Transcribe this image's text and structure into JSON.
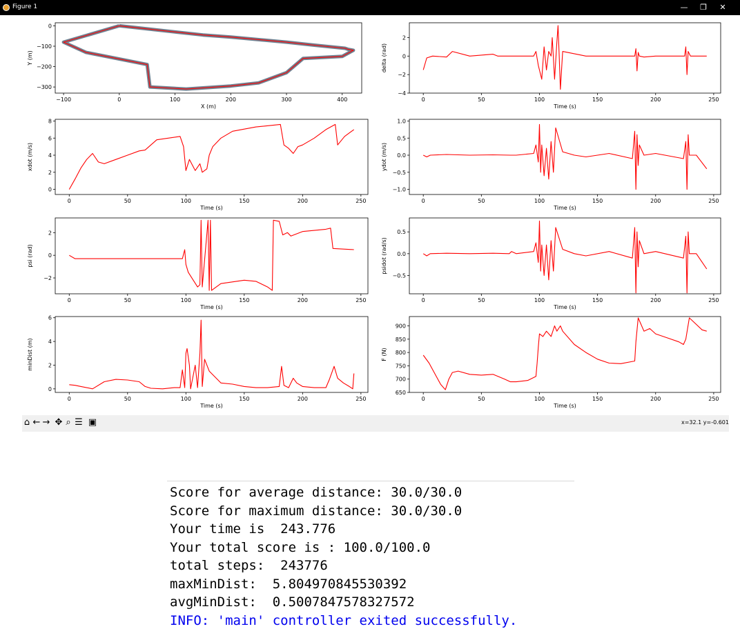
{
  "window": {
    "title": "Figure 1",
    "controls": {
      "minimize": "—",
      "maximize": "❐",
      "close": "✕"
    },
    "icon": "matplotlib-icon"
  },
  "toolbar": {
    "buttons": [
      {
        "name": "home-icon",
        "glyph": "⌂"
      },
      {
        "name": "back-icon",
        "glyph": "←"
      },
      {
        "name": "forward-icon",
        "glyph": "→"
      },
      {
        "name": "pan-icon",
        "glyph": "✥"
      },
      {
        "name": "zoom-icon",
        "glyph": "⌕"
      },
      {
        "name": "configure-subplots-icon",
        "glyph": "☰"
      },
      {
        "name": "save-icon",
        "glyph": "▣"
      }
    ],
    "coordinates": "x=32.1 y=-0.601"
  },
  "console": {
    "lines": [
      "Score for average distance: 30.0/30.0",
      "Score for maximum distance: 30.0/30.0",
      "Your time is  243.776",
      "Your total score is : 100.0/100.0",
      "total steps:  243776",
      "maxMinDist:  5.804970845530392",
      "avgMinDist:  0.5007847578327572"
    ],
    "info_line": "INFO: 'main' controller exited successfully.",
    "info_color": "#0000ee"
  },
  "colors": {
    "trajectory": "#ff0000",
    "reference_track": "#708090",
    "titlebar": "#000000",
    "toolbar": "#f0f0f0"
  },
  "chart_data": [
    {
      "id": "track",
      "type": "line",
      "xlabel": "X (m)",
      "ylabel": "Y (m)",
      "xlim": [
        -115,
        435
      ],
      "ylim": [
        -330,
        15
      ],
      "xticks": [
        -100,
        0,
        100,
        200,
        300,
        400
      ],
      "yticks": [
        0,
        -100,
        -200,
        -300
      ],
      "series": [
        {
          "color": "#708090",
          "closed": true,
          "x": [
            0,
            -100,
            -60,
            50,
            55,
            120,
            200,
            250,
            300,
            330,
            400,
            420,
            410,
            405,
            350,
            300,
            200,
            150,
            100,
            0
          ],
          "y": [
            0,
            -80,
            -130,
            -190,
            -300,
            -310,
            -295,
            -280,
            -230,
            -160,
            -150,
            -120,
            -115,
            -110,
            -95,
            -80,
            -55,
            -45,
            -30,
            0
          ]
        },
        {
          "color": "#ff0000",
          "closed": true,
          "x": [
            0,
            -100,
            -60,
            50,
            55,
            120,
            200,
            250,
            300,
            330,
            400,
            420,
            410,
            405,
            350,
            300,
            200,
            150,
            100,
            0
          ],
          "y": [
            0,
            -80,
            -130,
            -190,
            -300,
            -310,
            -295,
            -280,
            -230,
            -160,
            -150,
            -120,
            -115,
            -110,
            -95,
            -80,
            -55,
            -45,
            -30,
            0
          ]
        }
      ]
    },
    {
      "id": "delta",
      "type": "line",
      "xlabel": "Time (s)",
      "ylabel": "delta (rad)",
      "xlim": [
        -12,
        256
      ],
      "ylim": [
        -4,
        3.6
      ],
      "xticks": [
        0,
        50,
        100,
        150,
        200,
        250
      ],
      "yticks": [
        2,
        0,
        -2,
        -4
      ],
      "series": [
        {
          "color": "#ff0000",
          "x": [
            0,
            3,
            8,
            20,
            25,
            40,
            60,
            64,
            95,
            97,
            99,
            102,
            104,
            106,
            108,
            110,
            111,
            113,
            115,
            116,
            117,
            118,
            120,
            140,
            182,
            183,
            184,
            185,
            186,
            190,
            200,
            225,
            226,
            227,
            228,
            230,
            244
          ],
          "y": [
            -1.5,
            -0.2,
            0,
            -0.1,
            0.5,
            0,
            0.2,
            0,
            0,
            0.5,
            -1,
            -2.5,
            1,
            -1.5,
            0.5,
            0,
            2,
            -2.5,
            1.5,
            3.3,
            0,
            -3.6,
            0.5,
            0,
            0,
            0.8,
            -1.6,
            0.4,
            0,
            -0.1,
            0,
            0,
            1,
            -2,
            0.5,
            0,
            0
          ]
        }
      ]
    },
    {
      "id": "xdot",
      "type": "line",
      "xlabel": "Time (s)",
      "ylabel": "xdot (m/s)",
      "xlim": [
        -12,
        256
      ],
      "ylim": [
        -0.6,
        8.2
      ],
      "xticks": [
        0,
        50,
        100,
        150,
        200,
        250
      ],
      "yticks": [
        0,
        2,
        4,
        6,
        8
      ],
      "series": [
        {
          "color": "#ff0000",
          "x": [
            0,
            5,
            10,
            15,
            20,
            25,
            30,
            40,
            50,
            60,
            65,
            75,
            95,
            98,
            100,
            103,
            108,
            112,
            114,
            118,
            120,
            123,
            130,
            140,
            160,
            181,
            184,
            188,
            192,
            196,
            200,
            210,
            220,
            228,
            230,
            236,
            244
          ],
          "y": [
            0,
            1.2,
            2.5,
            3.5,
            4.2,
            3.2,
            3.0,
            3.5,
            4.0,
            4.5,
            4.6,
            5.8,
            6.2,
            5.0,
            2.2,
            3.5,
            2.2,
            3.0,
            2.0,
            2.4,
            4.0,
            5.0,
            6.0,
            6.8,
            7.3,
            7.6,
            5.2,
            4.8,
            4.2,
            5.0,
            5.2,
            6.0,
            7.0,
            7.6,
            5.2,
            6.2,
            7.0
          ]
        }
      ]
    },
    {
      "id": "ydot",
      "type": "line",
      "xlabel": "Time (s)",
      "ylabel": "ydot (m/s)",
      "xlim": [
        -12,
        256
      ],
      "ylim": [
        -1.15,
        1.05
      ],
      "xticks": [
        0,
        50,
        100,
        150,
        200,
        250
      ],
      "yticks": [
        1.0,
        0.5,
        0.0,
        -0.5,
        -1.0
      ],
      "series": [
        {
          "color": "#ff0000",
          "x": [
            0,
            3,
            6,
            20,
            40,
            60,
            75,
            80,
            95,
            97,
            99,
            100,
            101,
            102,
            104,
            106,
            108,
            110,
            112,
            114,
            120,
            130,
            140,
            160,
            180,
            182,
            183,
            184,
            185,
            186,
            190,
            200,
            224,
            226,
            227,
            228,
            229,
            235,
            244
          ],
          "y": [
            0,
            -0.05,
            0,
            0.02,
            0,
            0.01,
            0,
            0,
            0.05,
            0.3,
            -0.2,
            0.9,
            -0.5,
            0.3,
            -0.6,
            0.2,
            -0.7,
            0.4,
            -0.5,
            0.8,
            0.1,
            0,
            -0.05,
            0.05,
            -0.1,
            0.7,
            -1.0,
            0.6,
            -0.3,
            0.3,
            0,
            0.05,
            -0.1,
            0.4,
            -1.0,
            0.6,
            0,
            0,
            -0.4
          ]
        }
      ]
    },
    {
      "id": "psi",
      "type": "line",
      "xlabel": "Time (s)",
      "ylabel": "psi (rad)",
      "xlim": [
        -12,
        256
      ],
      "ylim": [
        -3.4,
        3.3
      ],
      "xticks": [
        0,
        50,
        100,
        150,
        200,
        250
      ],
      "yticks": [
        2,
        0,
        -2
      ],
      "series": [
        {
          "color": "#ff0000",
          "x": [
            0,
            5,
            20,
            60,
            97,
            99,
            100,
            102,
            110,
            112,
            113,
            114,
            119,
            120,
            121,
            122,
            130,
            150,
            160,
            170,
            174,
            175,
            180,
            183,
            187,
            190,
            200,
            220,
            224,
            226,
            244
          ],
          "y": [
            0,
            -0.3,
            -0.3,
            -0.3,
            -0.3,
            0.5,
            -0.8,
            -1.5,
            -2.8,
            -2.6,
            3.1,
            -2.8,
            3.1,
            -3.1,
            3.1,
            -3.1,
            -2.5,
            -2.2,
            -2.3,
            -2.8,
            -3.1,
            3.1,
            3.0,
            1.8,
            2.0,
            1.7,
            2.1,
            2.3,
            2.4,
            0.6,
            0.5
          ]
        }
      ]
    },
    {
      "id": "psidot",
      "type": "line",
      "xlabel": "Time (s)",
      "ylabel": "psidot (rad/s)",
      "xlim": [
        -12,
        256
      ],
      "ylim": [
        -0.92,
        0.82
      ],
      "xticks": [
        0,
        50,
        100,
        150,
        200,
        250
      ],
      "yticks": [
        0.5,
        0.0,
        -0.5
      ],
      "series": [
        {
          "color": "#ff0000",
          "x": [
            0,
            3,
            6,
            20,
            40,
            60,
            74,
            76,
            80,
            95,
            97,
            99,
            100,
            101,
            102,
            104,
            106,
            108,
            110,
            112,
            114,
            120,
            130,
            140,
            160,
            180,
            182,
            183,
            184,
            185,
            186,
            190,
            200,
            224,
            226,
            227,
            228,
            229,
            235,
            244
          ],
          "y": [
            0,
            -0.05,
            0,
            0.01,
            0,
            0.01,
            0,
            0.05,
            0,
            0.05,
            0.25,
            -0.2,
            0.75,
            -0.4,
            0.2,
            -0.5,
            0.2,
            -0.6,
            0.3,
            -0.4,
            0.6,
            0.1,
            0,
            -0.05,
            0.05,
            -0.1,
            0.6,
            -0.9,
            0.5,
            -0.3,
            0.3,
            0,
            0.05,
            -0.1,
            0.4,
            -0.9,
            0.5,
            0,
            0,
            -0.35
          ]
        }
      ]
    },
    {
      "id": "minDist",
      "type": "line",
      "xlabel": "Time (s)",
      "ylabel": "minDist (m)",
      "xlim": [
        -12,
        256
      ],
      "ylim": [
        -0.3,
        6.1
      ],
      "xticks": [
        0,
        50,
        100,
        150,
        200,
        250
      ],
      "yticks": [
        0,
        2,
        4,
        6
      ],
      "series": [
        {
          "color": "#ff0000",
          "x": [
            0,
            5,
            10,
            20,
            30,
            40,
            50,
            60,
            65,
            70,
            80,
            90,
            95,
            97,
            99,
            100,
            101,
            103,
            104,
            108,
            110,
            112,
            113,
            114,
            116,
            120,
            130,
            140,
            150,
            160,
            170,
            180,
            182,
            184,
            188,
            192,
            195,
            200,
            210,
            220,
            223,
            227,
            230,
            235,
            240,
            243,
            244
          ],
          "y": [
            0.35,
            0.3,
            0.2,
            0.0,
            0.6,
            0.8,
            0.75,
            0.6,
            0.2,
            0.05,
            0.0,
            0.1,
            0.1,
            1.6,
            0.1,
            3.0,
            3.4,
            2.0,
            0.0,
            2.0,
            0.1,
            3.0,
            5.8,
            0.2,
            2.5,
            1.5,
            0.5,
            0.4,
            0.2,
            0.1,
            0.1,
            0.2,
            1.9,
            0.3,
            0.1,
            0.9,
            0.5,
            0.2,
            0.1,
            0.1,
            0.8,
            1.9,
            0.9,
            0.5,
            0.2,
            0.0,
            1.3
          ]
        }
      ]
    },
    {
      "id": "F",
      "type": "line",
      "xlabel": "Time (s)",
      "ylabel": "F (N)",
      "xlim": [
        -12,
        256
      ],
      "ylim": [
        650,
        935
      ],
      "xticks": [
        0,
        50,
        100,
        150,
        200,
        250
      ],
      "yticks": [
        900,
        850,
        800,
        750,
        700,
        650
      ],
      "series": [
        {
          "color": "#ff0000",
          "x": [
            0,
            5,
            10,
            15,
            19,
            22,
            25,
            30,
            40,
            50,
            60,
            70,
            75,
            80,
            90,
            97,
            98,
            99,
            100,
            103,
            106,
            110,
            113,
            115,
            118,
            120,
            130,
            140,
            150,
            160,
            170,
            182,
            183,
            185,
            190,
            195,
            200,
            210,
            220,
            224,
            226,
            229,
            240,
            244
          ],
          "y": [
            790,
            760,
            720,
            680,
            660,
            700,
            725,
            730,
            718,
            715,
            718,
            700,
            690,
            690,
            695,
            710,
            760,
            820,
            870,
            860,
            880,
            860,
            900,
            880,
            900,
            880,
            830,
            800,
            775,
            760,
            758,
            768,
            840,
            930,
            880,
            890,
            870,
            855,
            840,
            830,
            850,
            930,
            885,
            880
          ]
        }
      ]
    }
  ]
}
